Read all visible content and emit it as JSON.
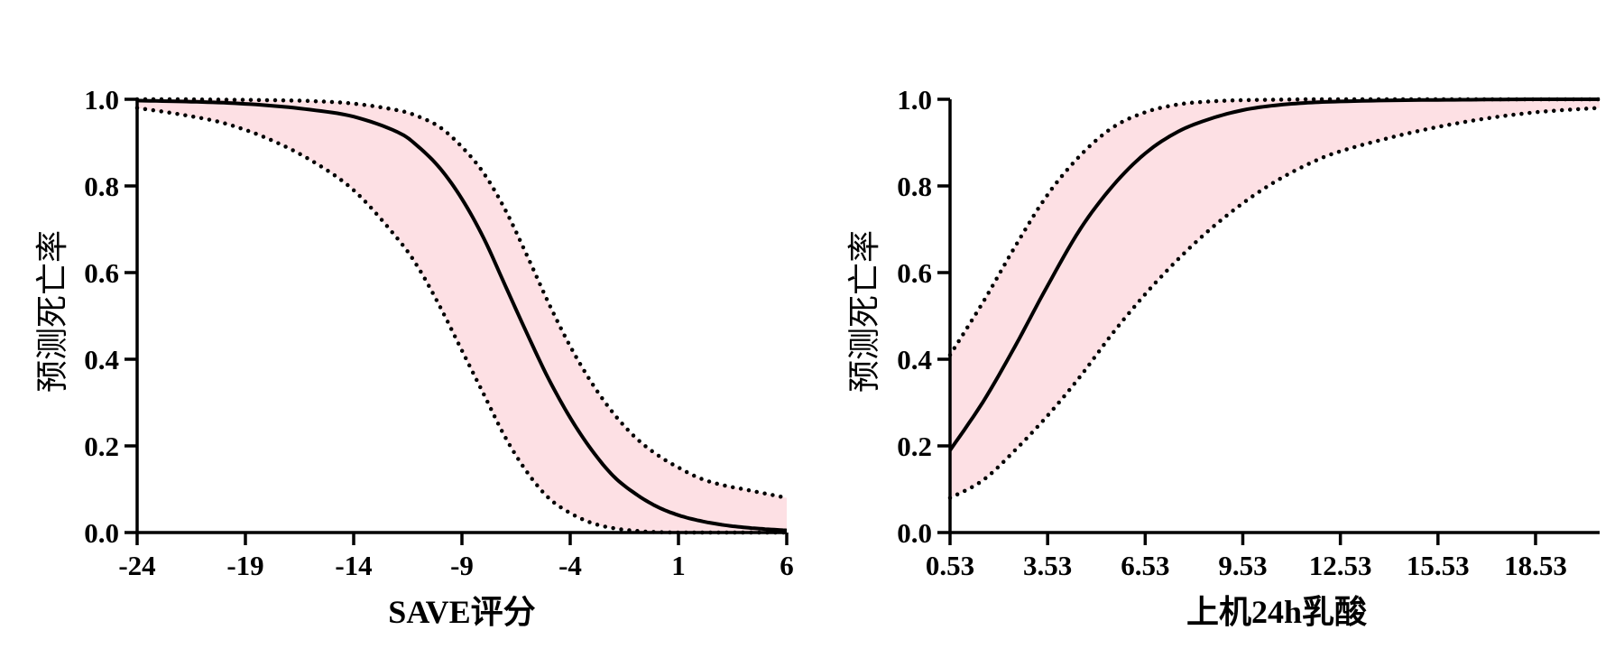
{
  "chart_data": [
    {
      "type": "line",
      "title": "",
      "xlabel": "SAVE评分",
      "ylabel": "预测死亡率",
      "xlim": [
        -24,
        6
      ],
      "ylim": [
        0,
        1.0
      ],
      "x_ticks": [
        "-24",
        "-19",
        "-14",
        "-9",
        "-4",
        "1",
        "6"
      ],
      "y_ticks": [
        "0.0",
        "0.2",
        "0.4",
        "0.6",
        "0.8",
        "1.0"
      ],
      "grid": false,
      "legend": "none",
      "series": [
        {
          "role": "prediction",
          "style": "solid",
          "x": [
            -24,
            -22,
            -20,
            -18,
            -16,
            -14,
            -12,
            -11,
            -10,
            -9,
            -8,
            -7,
            -6,
            -5,
            -4,
            -3,
            -2,
            -1,
            0,
            1,
            2,
            3,
            4,
            5,
            6
          ],
          "y": [
            0.997,
            0.995,
            0.992,
            0.986,
            0.976,
            0.96,
            0.925,
            0.89,
            0.84,
            0.77,
            0.68,
            0.57,
            0.46,
            0.355,
            0.265,
            0.19,
            0.13,
            0.09,
            0.06,
            0.04,
            0.027,
            0.018,
            0.012,
            0.008,
            0.005
          ]
        },
        {
          "role": "upper_ci",
          "style": "dotted",
          "x": [
            -24,
            -22,
            -20,
            -18,
            -16,
            -14,
            -12,
            -11,
            -10,
            -9,
            -8,
            -7,
            -6,
            -5,
            -4,
            -3,
            -2,
            -1,
            0,
            1,
            2,
            3,
            4,
            5,
            6
          ],
          "y": [
            1.0,
            1.0,
            0.999,
            0.998,
            0.996,
            0.99,
            0.975,
            0.96,
            0.935,
            0.89,
            0.83,
            0.745,
            0.64,
            0.53,
            0.43,
            0.345,
            0.275,
            0.22,
            0.18,
            0.15,
            0.125,
            0.11,
            0.1,
            0.09,
            0.08
          ]
        },
        {
          "role": "lower_ci",
          "style": "dotted",
          "x": [
            -24,
            -22,
            -20,
            -18,
            -16,
            -14,
            -12,
            -11,
            -10,
            -9,
            -8,
            -7,
            -6,
            -5,
            -4,
            -3,
            -2,
            -1,
            0,
            1,
            2,
            3,
            4,
            5,
            6
          ],
          "y": [
            0.98,
            0.965,
            0.945,
            0.91,
            0.86,
            0.79,
            0.68,
            0.61,
            0.52,
            0.42,
            0.32,
            0.22,
            0.14,
            0.08,
            0.045,
            0.022,
            0.01,
            0.004,
            0.001,
            0,
            0,
            0,
            0,
            0,
            0
          ]
        }
      ]
    },
    {
      "type": "line",
      "title": "",
      "xlabel": "上机24h乳酸",
      "ylabel": "预测死亡率",
      "xlim": [
        0.53,
        20.5
      ],
      "ylim": [
        0,
        1.0
      ],
      "x_ticks": [
        "0.53",
        "3.53",
        "6.53",
        "9.53",
        "12.53",
        "15.53",
        "18.53"
      ],
      "x_tick_values": [
        0.53,
        3.53,
        6.53,
        9.53,
        12.53,
        15.53,
        18.53
      ],
      "y_ticks": [
        "0.0",
        "0.2",
        "0.4",
        "0.6",
        "0.8",
        "1.0"
      ],
      "grid": false,
      "legend": "none",
      "series": [
        {
          "role": "prediction",
          "style": "solid",
          "x": [
            0.53,
            1.53,
            2.53,
            3.53,
            4.53,
            5.53,
            6.53,
            7.53,
            8.53,
            9.53,
            10.53,
            11.53,
            12.53,
            14.53,
            16.53,
            18.53,
            20.5
          ],
          "y": [
            0.19,
            0.3,
            0.43,
            0.57,
            0.7,
            0.8,
            0.875,
            0.925,
            0.955,
            0.975,
            0.986,
            0.992,
            0.995,
            0.998,
            0.999,
            1.0,
            1.0
          ]
        },
        {
          "role": "upper_ci",
          "style": "dotted",
          "x": [
            0.53,
            1.53,
            2.53,
            3.53,
            4.53,
            5.53,
            6.53,
            7.53,
            8.53,
            9.53,
            10.53,
            11.53,
            12.53,
            14.53,
            16.53,
            18.53,
            20.5
          ],
          "y": [
            0.41,
            0.53,
            0.66,
            0.78,
            0.87,
            0.935,
            0.97,
            0.988,
            0.995,
            0.998,
            0.999,
            1.0,
            1.0,
            1.0,
            1.0,
            1.0,
            1.0
          ]
        },
        {
          "role": "lower_ci",
          "style": "dotted",
          "x": [
            0.53,
            1.53,
            2.53,
            3.53,
            4.53,
            5.53,
            6.53,
            7.53,
            8.53,
            9.53,
            10.53,
            11.53,
            12.53,
            14.53,
            16.53,
            18.53,
            20.5
          ],
          "y": [
            0.08,
            0.12,
            0.19,
            0.27,
            0.36,
            0.46,
            0.55,
            0.63,
            0.7,
            0.76,
            0.81,
            0.85,
            0.88,
            0.92,
            0.95,
            0.97,
            0.98
          ]
        }
      ]
    }
  ],
  "colors": {
    "ci_fill": "#fde0e4",
    "line": "#000000",
    "axis": "#000000"
  }
}
